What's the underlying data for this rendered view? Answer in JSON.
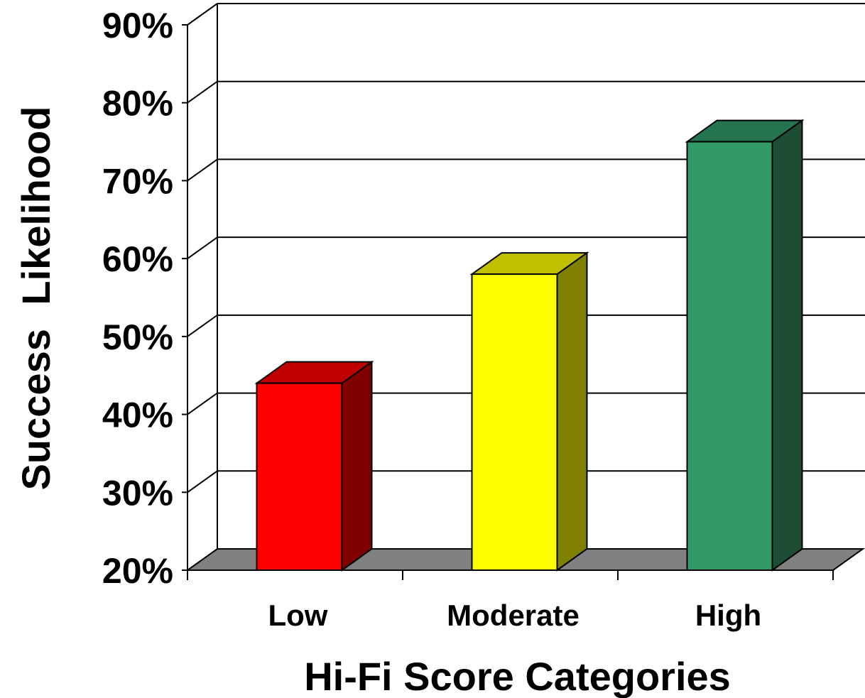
{
  "chart_data": {
    "type": "bar",
    "style": "3d",
    "title": "",
    "xlabel": "Hi-Fi Score Categories",
    "ylabel": "Success Likelihood",
    "ylim": [
      0.2,
      0.9
    ],
    "yticks": [
      {
        "value": 0.2,
        "label": "20%"
      },
      {
        "value": 0.3,
        "label": "30%"
      },
      {
        "value": 0.4,
        "label": "40%"
      },
      {
        "value": 0.5,
        "label": "50%"
      },
      {
        "value": 0.6,
        "label": "60%"
      },
      {
        "value": 0.7,
        "label": "70%"
      },
      {
        "value": 0.8,
        "label": "80%"
      },
      {
        "value": 0.9,
        "label": "90%"
      }
    ],
    "categories": [
      "Low",
      "Moderate",
      "High"
    ],
    "values": [
      0.44,
      0.58,
      0.75
    ],
    "colors": [
      {
        "front": "#ff0000",
        "top": "#c00000",
        "side": "#800000"
      },
      {
        "front": "#ffff00",
        "top": "#c0c000",
        "side": "#808000"
      },
      {
        "front": "#339966",
        "top": "#267350",
        "side": "#1d4d35"
      }
    ],
    "floor_color": "#808080",
    "grid": true,
    "legend": "none"
  }
}
